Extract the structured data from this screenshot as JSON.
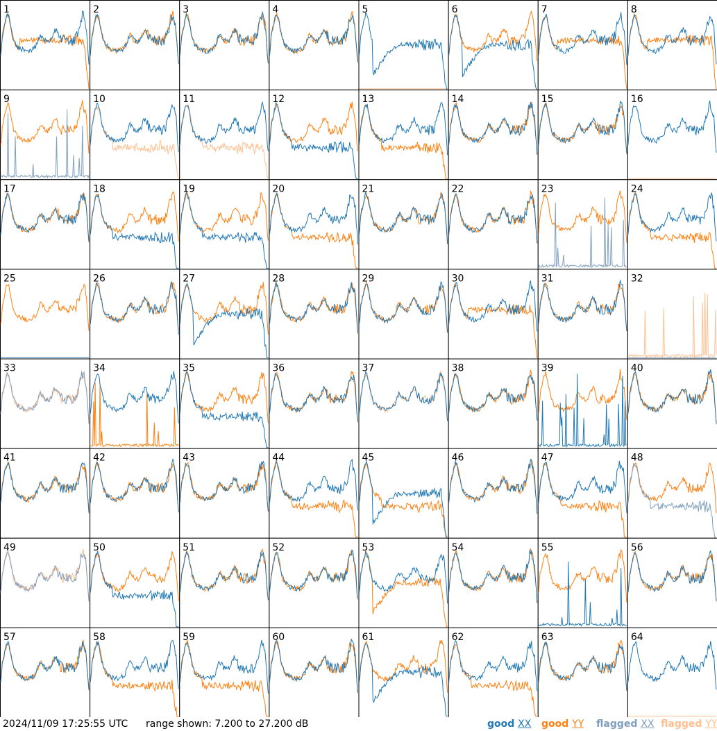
{
  "timestamp": "2024/11/09 17:25:55 UTC",
  "range_text": "range shown: 7.200 to 27.200 dB",
  "legend": [
    {
      "key": "good_xx",
      "word": "good",
      "pol": "XX",
      "color": "#1f77b4"
    },
    {
      "key": "good_yy",
      "word": "good",
      "pol": "YY",
      "color": "#ff7f0e"
    },
    {
      "key": "flagged_xx",
      "word": "flagged",
      "pol": "XX",
      "color": "#7f9fbf"
    },
    {
      "key": "flagged_yy",
      "word": "flagged",
      "pol": "YY",
      "color": "#ffbf8f"
    }
  ],
  "chart_data": {
    "type": "line",
    "layout": "8x8 small multiples",
    "ylim": [
      7.2,
      27.2
    ],
    "yunit": "dB",
    "panels": [
      {
        "label": "1",
        "xx": "good",
        "yy": "good",
        "xx_shape": "normal",
        "yy_shape": "drop"
      },
      {
        "label": "2",
        "xx": "good",
        "yy": "good",
        "xx_shape": "normal",
        "yy_shape": "normal"
      },
      {
        "label": "3",
        "xx": "good",
        "yy": "good",
        "xx_shape": "normal",
        "yy_shape": "normal"
      },
      {
        "label": "4",
        "xx": "good",
        "yy": "good",
        "xx_shape": "normal",
        "yy_shape": "normal"
      },
      {
        "label": "5",
        "xx": "good",
        "yy": "flagged",
        "xx_shape": "deepdip",
        "yy_shape": "flat"
      },
      {
        "label": "6",
        "xx": "good",
        "yy": "good",
        "xx_shape": "deepdip",
        "yy_shape": "normal"
      },
      {
        "label": "7",
        "xx": "good",
        "yy": "good",
        "xx_shape": "normal",
        "yy_shape": "drop"
      },
      {
        "label": "8",
        "xx": "good",
        "yy": "good",
        "xx_shape": "normal",
        "yy_shape": "drop"
      },
      {
        "label": "9",
        "xx": "flagged",
        "yy": "good",
        "xx_shape": "spiky",
        "yy_shape": "normal"
      },
      {
        "label": "10",
        "xx": "good",
        "yy": "flagged",
        "xx_shape": "normal",
        "yy_shape": "lowflat"
      },
      {
        "label": "11",
        "xx": "good",
        "yy": "flagged",
        "xx_shape": "normal",
        "yy_shape": "lowflat"
      },
      {
        "label": "12",
        "xx": "good",
        "yy": "good",
        "xx_shape": "lowdrop",
        "yy_shape": "normal"
      },
      {
        "label": "13",
        "xx": "good",
        "yy": "good",
        "xx_shape": "normal",
        "yy_shape": "lowdrop"
      },
      {
        "label": "14",
        "xx": "good",
        "yy": "good",
        "xx_shape": "normal",
        "yy_shape": "normal"
      },
      {
        "label": "15",
        "xx": "good",
        "yy": "good",
        "xx_shape": "normal",
        "yy_shape": "normal"
      },
      {
        "label": "16",
        "xx": "good",
        "yy": "flagged",
        "xx_shape": "normal",
        "yy_shape": "flat"
      },
      {
        "label": "17",
        "xx": "good",
        "yy": "good",
        "xx_shape": "normal",
        "yy_shape": "normal"
      },
      {
        "label": "18",
        "xx": "good",
        "yy": "good",
        "xx_shape": "lowdrop",
        "yy_shape": "normal"
      },
      {
        "label": "19",
        "xx": "good",
        "yy": "good",
        "xx_shape": "lowdrop",
        "yy_shape": "normal"
      },
      {
        "label": "20",
        "xx": "good",
        "yy": "good",
        "xx_shape": "normal",
        "yy_shape": "lowdrop"
      },
      {
        "label": "21",
        "xx": "good",
        "yy": "good",
        "xx_shape": "normal",
        "yy_shape": "normal"
      },
      {
        "label": "22",
        "xx": "good",
        "yy": "good",
        "xx_shape": "normal",
        "yy_shape": "normal"
      },
      {
        "label": "23",
        "xx": "flagged",
        "yy": "good",
        "xx_shape": "spiky",
        "yy_shape": "normal"
      },
      {
        "label": "24",
        "xx": "good",
        "yy": "good",
        "xx_shape": "normal",
        "yy_shape": "lowdrop"
      },
      {
        "label": "25",
        "xx": "good",
        "yy": "good",
        "xx_shape": "flat",
        "yy_shape": "normal"
      },
      {
        "label": "26",
        "xx": "good",
        "yy": "good",
        "xx_shape": "normal",
        "yy_shape": "normal"
      },
      {
        "label": "27",
        "xx": "good",
        "yy": "good",
        "xx_shape": "deepdip",
        "yy_shape": "normal"
      },
      {
        "label": "28",
        "xx": "good",
        "yy": "good",
        "xx_shape": "normal",
        "yy_shape": "normal"
      },
      {
        "label": "29",
        "xx": "good",
        "yy": "good",
        "xx_shape": "normal",
        "yy_shape": "normal"
      },
      {
        "label": "30",
        "xx": "good",
        "yy": "good",
        "xx_shape": "normal",
        "yy_shape": "drop"
      },
      {
        "label": "31",
        "xx": "good",
        "yy": "good",
        "xx_shape": "normal",
        "yy_shape": "normal"
      },
      {
        "label": "32",
        "xx": "flagged",
        "yy": "flagged",
        "xx_shape": "flat",
        "yy_shape": "spiky"
      },
      {
        "label": "33",
        "xx": "flagged",
        "yy": "flagged",
        "xx_shape": "normal",
        "yy_shape": "normal"
      },
      {
        "label": "34",
        "xx": "good",
        "yy": "good",
        "xx_shape": "normal",
        "yy_shape": "spiky"
      },
      {
        "label": "35",
        "xx": "good",
        "yy": "good",
        "xx_shape": "lowdrop",
        "yy_shape": "normal"
      },
      {
        "label": "36",
        "xx": "good",
        "yy": "good",
        "xx_shape": "normal",
        "yy_shape": "normal"
      },
      {
        "label": "37",
        "xx": "good",
        "yy": "flagged",
        "xx_shape": "normal",
        "yy_shape": "normal"
      },
      {
        "label": "38",
        "xx": "good",
        "yy": "good",
        "xx_shape": "normal",
        "yy_shape": "normal"
      },
      {
        "label": "39",
        "xx": "good",
        "yy": "good",
        "xx_shape": "spiky",
        "yy_shape": "normal"
      },
      {
        "label": "40",
        "xx": "good",
        "yy": "good",
        "xx_shape": "normal",
        "yy_shape": "normal"
      },
      {
        "label": "41",
        "xx": "good",
        "yy": "good",
        "xx_shape": "normal",
        "yy_shape": "normal"
      },
      {
        "label": "42",
        "xx": "good",
        "yy": "good",
        "xx_shape": "normal",
        "yy_shape": "normal"
      },
      {
        "label": "43",
        "xx": "good",
        "yy": "good",
        "xx_shape": "normal",
        "yy_shape": "normal"
      },
      {
        "label": "44",
        "xx": "good",
        "yy": "good",
        "xx_shape": "normal",
        "yy_shape": "lowdrop"
      },
      {
        "label": "45",
        "xx": "good",
        "yy": "good",
        "xx_shape": "deepdip",
        "yy_shape": "lowdrop"
      },
      {
        "label": "46",
        "xx": "good",
        "yy": "good",
        "xx_shape": "normal",
        "yy_shape": "normal"
      },
      {
        "label": "47",
        "xx": "good",
        "yy": "good",
        "xx_shape": "normal",
        "yy_shape": "lowdrop"
      },
      {
        "label": "48",
        "xx": "flagged",
        "yy": "good",
        "xx_shape": "lowdrop",
        "yy_shape": "normal"
      },
      {
        "label": "49",
        "xx": "flagged",
        "yy": "flagged",
        "xx_shape": "normal",
        "yy_shape": "normal"
      },
      {
        "label": "50",
        "xx": "good",
        "yy": "good",
        "xx_shape": "lowdrop",
        "yy_shape": "normal"
      },
      {
        "label": "51",
        "xx": "good",
        "yy": "good",
        "xx_shape": "normal",
        "yy_shape": "normal"
      },
      {
        "label": "52",
        "xx": "good",
        "yy": "good",
        "xx_shape": "normal",
        "yy_shape": "normal"
      },
      {
        "label": "53",
        "xx": "good",
        "yy": "good",
        "xx_shape": "normal",
        "yy_shape": "deepdip"
      },
      {
        "label": "54",
        "xx": "good",
        "yy": "good",
        "xx_shape": "normal",
        "yy_shape": "normal"
      },
      {
        "label": "55",
        "xx": "good",
        "yy": "good",
        "xx_shape": "spiky",
        "yy_shape": "normal"
      },
      {
        "label": "56",
        "xx": "good",
        "yy": "good",
        "xx_shape": "normal",
        "yy_shape": "normal"
      },
      {
        "label": "57",
        "xx": "good",
        "yy": "good",
        "xx_shape": "normal",
        "yy_shape": "normal"
      },
      {
        "label": "58",
        "xx": "good",
        "yy": "good",
        "xx_shape": "normal",
        "yy_shape": "lowdrop"
      },
      {
        "label": "59",
        "xx": "good",
        "yy": "good",
        "xx_shape": "normal",
        "yy_shape": "lowdrop"
      },
      {
        "label": "60",
        "xx": "good",
        "yy": "good",
        "xx_shape": "normal",
        "yy_shape": "normal"
      },
      {
        "label": "61",
        "xx": "good",
        "yy": "good",
        "xx_shape": "deepdip",
        "yy_shape": "normal"
      },
      {
        "label": "62",
        "xx": "good",
        "yy": "good",
        "xx_shape": "normal",
        "yy_shape": "lowdrop"
      },
      {
        "label": "63",
        "xx": "good",
        "yy": "good",
        "xx_shape": "normal",
        "yy_shape": "normal"
      },
      {
        "label": "64",
        "xx": "good",
        "yy": "flagged",
        "xx_shape": "normal",
        "yy_shape": "flat"
      }
    ]
  }
}
